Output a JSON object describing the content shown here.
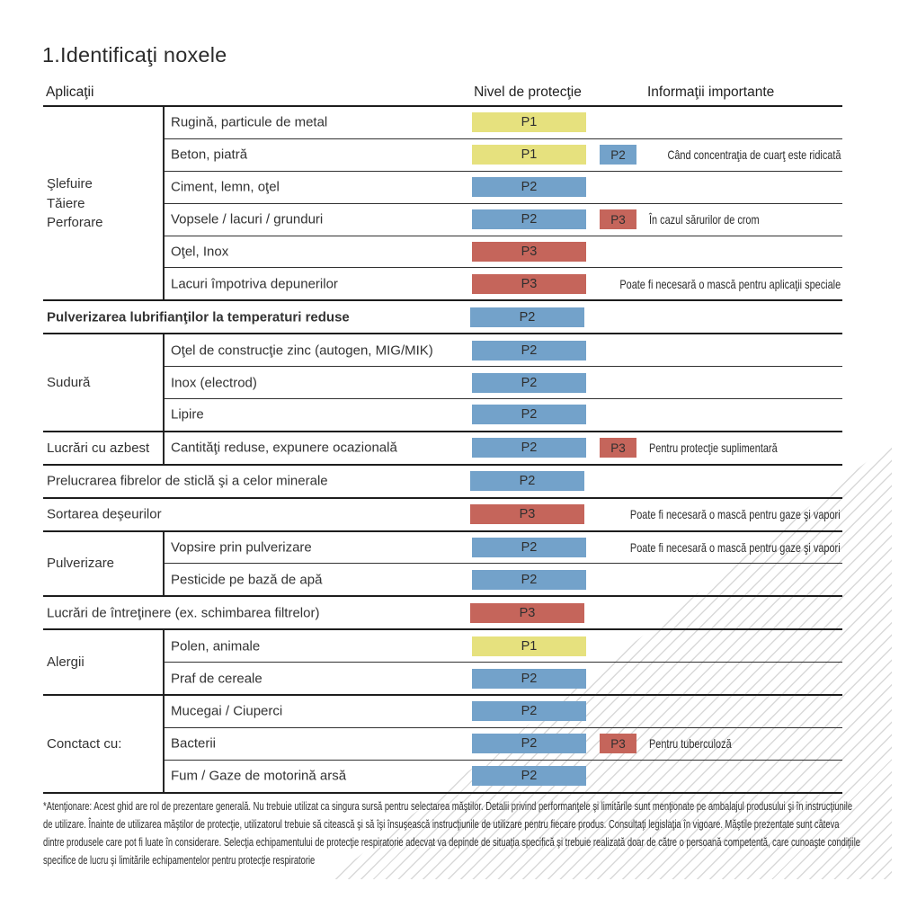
{
  "title": "1.Identificaţi noxele",
  "header": {
    "applications": "Aplicaţii",
    "protection_level": "Nivel de protecţie",
    "important_info": "Informaţii importante"
  },
  "colors": {
    "p1": "#e6e17e",
    "p2": "#73a2ca",
    "p3": "#c5655b"
  },
  "table": {
    "groups": [
      {
        "category": "Şlefuire\nTăiere\nPerforare",
        "rows": [
          {
            "label": "Rugină, particule de metal",
            "level": "P1"
          },
          {
            "label": "Beton, piatră",
            "level": "P1",
            "extra": "P2",
            "note": "Când concentraţia de cuarţ este ridicată"
          },
          {
            "label": "Ciment, lemn, oţel",
            "level": "P2"
          },
          {
            "label": "Vopsele / lacuri / grunduri",
            "level": "P2",
            "extra": "P3",
            "note": "În cazul sărurilor de crom"
          },
          {
            "label": "Oţel, Inox",
            "level": "P3"
          },
          {
            "label": "Lacuri împotriva depunerilor",
            "level": "P3",
            "note": "Poate fi necesară o mască pentru aplicaţii speciale"
          }
        ]
      },
      {
        "rows": [
          {
            "label": "Pulverizarea lubrifianţilor la temperaturi reduse",
            "level": "P2"
          }
        ]
      },
      {
        "category": "Sudură",
        "rows": [
          {
            "label": "Oţel de construcţie zinc (autogen, MIG/MIK)",
            "level": "P2"
          },
          {
            "label": "Inox (electrod)",
            "level": "P2"
          },
          {
            "label": "Lipire",
            "level": "P2"
          }
        ]
      },
      {
        "category": "Lucrări cu azbest",
        "rows": [
          {
            "label": "Cantităţi reduse, expunere ocazională",
            "level": "P2",
            "extra": "P3",
            "note": "Pentru protecţie suplimentară"
          }
        ]
      },
      {
        "rows": [
          {
            "label": "Prelucrarea fibrelor de sticlă şi a celor minerale",
            "level": "P2"
          }
        ]
      },
      {
        "rows": [
          {
            "label": "Sortarea deşeurilor",
            "level": "P3",
            "note": "Poate fi necesară o mască pentru gaze şi vapori"
          }
        ]
      },
      {
        "category": "Pulverizare",
        "rows": [
          {
            "label": "Vopsire prin pulverizare",
            "level": "P2",
            "note": "Poate fi necesară o mască pentru gaze şi vapori"
          },
          {
            "label": "Pesticide pe bază de apă",
            "level": "P2"
          }
        ]
      },
      {
        "rows": [
          {
            "label": "Lucrări de întreţinere (ex. schimbarea filtrelor)",
            "level": "P3"
          }
        ]
      },
      {
        "category": "Alergii",
        "rows": [
          {
            "label": "Polen, animale",
            "level": "P1"
          },
          {
            "label": "Praf de cereale",
            "level": "P2"
          }
        ]
      },
      {
        "category": "Conctact cu:",
        "rows": [
          {
            "label": "Mucegai / Ciuperci",
            "level": "P2"
          },
          {
            "label": "Bacterii",
            "level": "P2",
            "extra": "P3",
            "note": "Pentru tuberculoză"
          },
          {
            "label": "Fum / Gaze de motorină arsă",
            "level": "P2"
          }
        ]
      }
    ]
  },
  "footnote": {
    "lines": [
      "*Atenţionare: Acest ghid are rol de prezentare generală. Nu trebuie utilizat ca singura sursă pentru selectarea măştilor. Detalii privind performanţele şi limitările sunt menţionate pe ambalajul produsului şi în instrucţiunile",
      "de utilizare. Înainte de utilizarea măştilor de protecţie, utilizatorul trebuie să citească şi să îşi însuşească instrucţiunile de utilizare pentru fiecare produs. Consultaţi legislaţia în vigoare. Măştile prezentate sunt câteva",
      "dintre produsele care pot fi luate în considerare. Selecţia echipamentului de protecţie respiratorie adecvat va depinde de situaţia specifică şi trebuie realizată doar de către o persoană competentă, care cunoaşte condiţiile",
      "specifice de lucru şi limitările echipamentelor pentru protecţie respiratorie"
    ]
  }
}
